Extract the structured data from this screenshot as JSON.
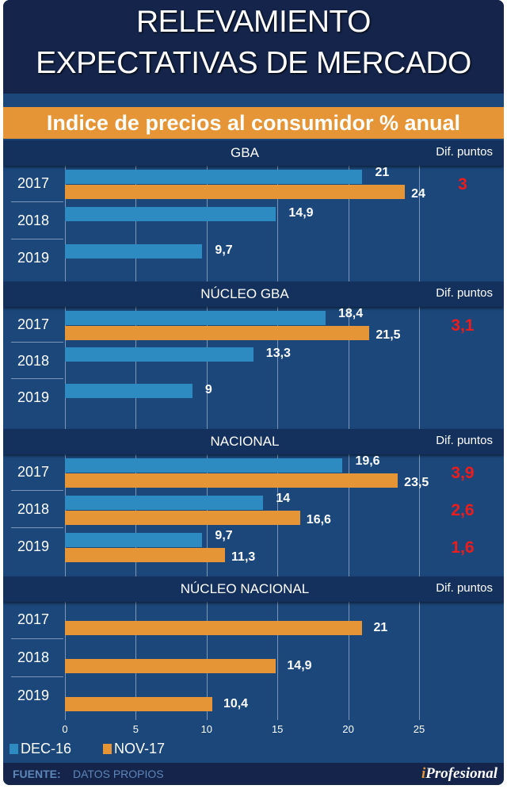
{
  "header": {
    "title_line1": "RELEVAMIENTO",
    "title_line2": "EXPECTATIVAS DE MERCADO",
    "subtitle": "Indice de precios al consumidor % anual"
  },
  "colors": {
    "dec16": "#2d8bc2",
    "nov17": "#e59535",
    "diff": "#ee1c1c",
    "background": "#1b477a",
    "header": "#14244a"
  },
  "chart_data": {
    "type": "bar",
    "orientation": "horizontal",
    "title": "Indice de precios al consumidor % anual",
    "xlim": [
      0,
      27
    ],
    "x_ticks": [
      "0",
      "5",
      "10",
      "15",
      "20",
      "25"
    ],
    "grid": true,
    "legend": [
      {
        "name": "DEC-16",
        "color": "#2d8bc2"
      },
      {
        "name": "NOV-17",
        "color": "#e59535"
      }
    ],
    "legend_position": "bottom-left",
    "diff_label": "Dif. puntos",
    "panels": [
      {
        "name": "GBA",
        "categories": [
          "2017",
          "2018",
          "2019"
        ],
        "series": [
          {
            "name": "DEC-16",
            "values": [
              21,
              14.9,
              9.7
            ],
            "labels": [
              "21",
              "14,9",
              "9,7"
            ]
          },
          {
            "name": "NOV-17",
            "values": [
              24,
              null,
              null
            ],
            "labels": [
              "24",
              "",
              ""
            ]
          }
        ],
        "diffs": [
          "3",
          "",
          ""
        ]
      },
      {
        "name": "NÚCLEO GBA",
        "categories": [
          "2017",
          "2018",
          "2019"
        ],
        "series": [
          {
            "name": "DEC-16",
            "values": [
              18.4,
              13.3,
              9
            ],
            "labels": [
              "18,4",
              "13,3",
              "9"
            ]
          },
          {
            "name": "NOV-17",
            "values": [
              21.5,
              null,
              null
            ],
            "labels": [
              "21,5",
              "",
              ""
            ]
          }
        ],
        "diffs": [
          "3,1",
          "",
          ""
        ]
      },
      {
        "name": "NACIONAL",
        "categories": [
          "2017",
          "2018",
          "2019"
        ],
        "series": [
          {
            "name": "DEC-16",
            "values": [
              19.6,
              14,
              9.7
            ],
            "labels": [
              "19,6",
              "14",
              "9,7"
            ]
          },
          {
            "name": "NOV-17",
            "values": [
              23.5,
              16.6,
              11.3
            ],
            "labels": [
              "23,5",
              "16,6",
              "11,3"
            ]
          }
        ],
        "diffs": [
          "3,9",
          "2,6",
          "1,6"
        ]
      },
      {
        "name": "NÚCLEO NACIONAL",
        "categories": [
          "2017",
          "2018",
          "2019"
        ],
        "series": [
          {
            "name": "DEC-16",
            "values": [
              null,
              null,
              null
            ],
            "labels": [
              "",
              "",
              ""
            ]
          },
          {
            "name": "NOV-17",
            "values": [
              21,
              14.9,
              10.4
            ],
            "labels": [
              "21",
              "14,9",
              "10,4"
            ]
          }
        ],
        "diffs": [
          "",
          "",
          ""
        ]
      }
    ]
  },
  "footer": {
    "source_label": "FUENTE:",
    "source_value": "DATOS PROPIOS",
    "brand_i": "i",
    "brand_rest": "Profesional"
  }
}
